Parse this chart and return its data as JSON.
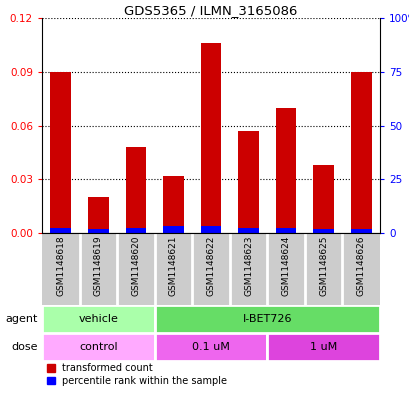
{
  "title": "GDS5365 / ILMN_3165086",
  "samples": [
    "GSM1148618",
    "GSM1148619",
    "GSM1148620",
    "GSM1148621",
    "GSM1148622",
    "GSM1148623",
    "GSM1148624",
    "GSM1148625",
    "GSM1148626"
  ],
  "red_values": [
    0.09,
    0.02,
    0.048,
    0.032,
    0.106,
    0.057,
    0.07,
    0.038,
    0.09
  ],
  "blue_values": [
    0.003,
    0.002,
    0.003,
    0.004,
    0.004,
    0.003,
    0.003,
    0.002,
    0.002
  ],
  "ylim_left": [
    0,
    0.12
  ],
  "ylim_right": [
    0,
    100
  ],
  "yticks_left": [
    0,
    0.03,
    0.06,
    0.09,
    0.12
  ],
  "yticks_right": [
    0,
    25,
    50,
    75,
    100
  ],
  "agent_groups": [
    {
      "label": "vehicle",
      "start": 0,
      "end": 3,
      "color": "#aaffaa"
    },
    {
      "label": "I-BET726",
      "start": 3,
      "end": 9,
      "color": "#66dd66"
    }
  ],
  "dose_groups": [
    {
      "label": "control",
      "start": 0,
      "end": 3,
      "color": "#ffaaff"
    },
    {
      "label": "0.1 uM",
      "start": 3,
      "end": 6,
      "color": "#ee66ee"
    },
    {
      "label": "1 uM",
      "start": 6,
      "end": 9,
      "color": "#dd44dd"
    }
  ],
  "legend_red": "transformed count",
  "legend_blue": "percentile rank within the sample",
  "bar_width": 0.55,
  "label_box_color": "#cccccc",
  "label_box_edge": "#ffffff"
}
